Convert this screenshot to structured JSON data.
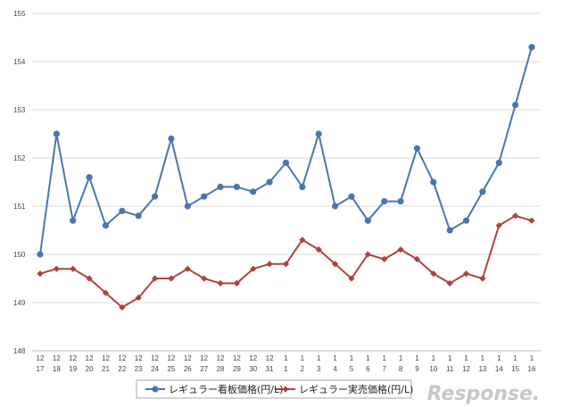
{
  "chart_data": {
    "type": "line",
    "ylim": [
      148,
      155
    ],
    "yticks": [
      148,
      149,
      150,
      151,
      152,
      153,
      154,
      155
    ],
    "grid": true,
    "legend_position": "bottom",
    "categories": [
      [
        "12",
        "17"
      ],
      [
        "12",
        "18"
      ],
      [
        "12",
        "19"
      ],
      [
        "12",
        "20"
      ],
      [
        "12",
        "21"
      ],
      [
        "12",
        "22"
      ],
      [
        "12",
        "23"
      ],
      [
        "12",
        "24"
      ],
      [
        "12",
        "25"
      ],
      [
        "12",
        "26"
      ],
      [
        "12",
        "27"
      ],
      [
        "12",
        "28"
      ],
      [
        "12",
        "29"
      ],
      [
        "12",
        "30"
      ],
      [
        "12",
        "31"
      ],
      [
        "1",
        "1"
      ],
      [
        "1",
        "2"
      ],
      [
        "1",
        "3"
      ],
      [
        "1",
        "4"
      ],
      [
        "1",
        "5"
      ],
      [
        "1",
        "6"
      ],
      [
        "1",
        "7"
      ],
      [
        "1",
        "8"
      ],
      [
        "1",
        "9"
      ],
      [
        "1",
        "10"
      ],
      [
        "1",
        "11"
      ],
      [
        "1",
        "12"
      ],
      [
        "1",
        "13"
      ],
      [
        "1",
        "14"
      ],
      [
        "1",
        "15"
      ],
      [
        "1",
        "16"
      ]
    ],
    "series": [
      {
        "name": "レギュラー看板価格(円/L)",
        "color": "#4a76b0",
        "marker": "circle",
        "values": [
          150.0,
          152.5,
          150.7,
          151.6,
          150.6,
          150.9,
          150.8,
          151.2,
          152.4,
          151.0,
          151.2,
          151.4,
          151.4,
          151.3,
          151.5,
          151.9,
          151.4,
          152.5,
          151.0,
          151.2,
          150.7,
          151.1,
          151.1,
          152.2,
          151.5,
          150.5,
          150.7,
          151.3,
          151.9,
          153.1,
          154.3
        ]
      },
      {
        "name": "レギュラー実売価格(円/L)",
        "color": "#b0413e",
        "marker": "diamond",
        "values": [
          149.6,
          149.7,
          149.7,
          149.5,
          149.2,
          148.9,
          149.1,
          149.5,
          149.5,
          149.7,
          149.5,
          149.4,
          149.4,
          149.7,
          149.8,
          149.8,
          150.3,
          150.1,
          149.8,
          149.5,
          150.0,
          149.9,
          150.1,
          149.9,
          149.6,
          149.4,
          149.6,
          149.5,
          150.6,
          150.8,
          150.7
        ]
      }
    ]
  },
  "watermark": {
    "text": "Response."
  }
}
